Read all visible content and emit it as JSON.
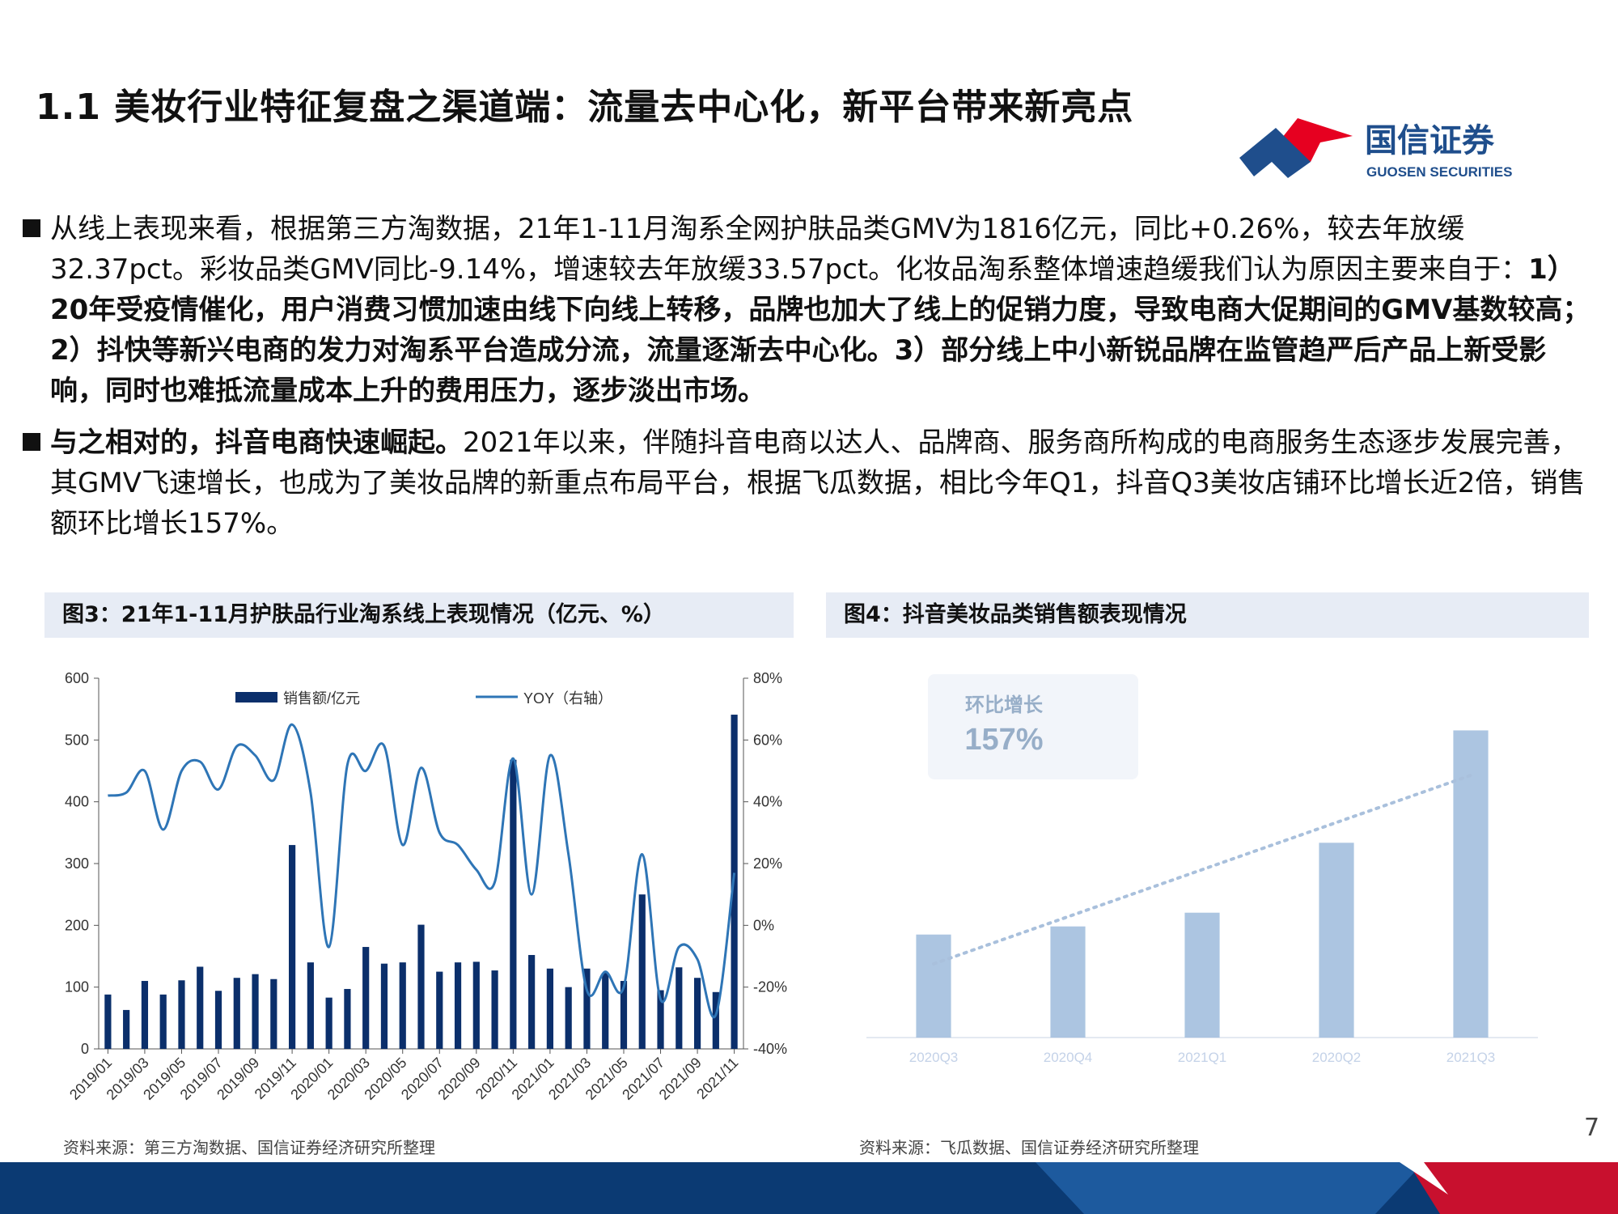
{
  "title": "1.1 美妆行业特征复盘之渠道端：流量去中心化，新平台带来新亮点",
  "logo": {
    "name_cn": "国信证券",
    "name_en": "GUOSEN SECURITIES",
    "colors": {
      "red": "#e60020",
      "blue": "#1f4e8c"
    }
  },
  "bullets": [
    {
      "p1": "从线上表现来看，根据第三方淘数据，21年1-11月淘系全网护肤品类GMV为1816亿元，同比+0.26%，较去年放缓32.37pct。彩妆品类GMV同比-9.14%，增速较去年放缓33.57pct。化妆品淘系整体增速趋缓我们认为原因主要来自于：",
      "p2": "1）20年受疫情催化，用户消费习惯加速由线下向线上转移，品牌也加大了线上的促销力度，导致电商大促期间的GMV基数较高；2）抖快等新兴电商的发力对淘系平台造成分流，流量逐渐去中心化。3）部分线上中小新锐品牌在监管趋严后产品上新受影响，同时也难抵流量成本上升的费用压力，逐步淡出市场。"
    },
    {
      "p1": "与之相对的，抖音电商快速崛起。",
      "p2": "2021年以来，伴随抖音电商以达人、品牌商、服务商所构成的电商服务生态逐步发展完善，其GMV飞速增长，也成为了美妆品牌的新重点布局平台，根据飞瓜数据，相比今年Q1，抖音Q3美妆店铺环比增长近2倍，销售额环比增长157%。"
    }
  ],
  "figure3": {
    "caption": "图3：21年1-11月护肤品行业淘系线上表现情况（亿元、%）",
    "source": "资料来源：第三方淘数据、国信证券经济研究所整理"
  },
  "figure4": {
    "caption": "图4：抖音美妆品类销售额表现情况",
    "source": "资料来源：飞瓜数据、国信证券经济研究所整理"
  },
  "page_number": "7",
  "chart_data": [
    {
      "type": "bar",
      "categories": [
        "2019/01",
        "2019/02",
        "2019/03",
        "2019/04",
        "2019/05",
        "2019/06",
        "2019/07",
        "2019/08",
        "2019/09",
        "2019/10",
        "2019/11",
        "2019/12",
        "2020/01",
        "2020/02",
        "2020/03",
        "2020/04",
        "2020/05",
        "2020/06",
        "2020/07",
        "2020/08",
        "2020/09",
        "2020/10",
        "2020/11",
        "2020/12",
        "2021/01",
        "2021/02",
        "2021/03",
        "2021/04",
        "2021/05",
        "2021/06",
        "2021/07",
        "2021/08",
        "2021/09",
        "2021/10",
        "2021/11"
      ],
      "tick_labels": [
        "2019/01",
        "2019/03",
        "2019/05",
        "2019/07",
        "2019/09",
        "2019/11",
        "2020/01",
        "2020/03",
        "2020/05",
        "2020/07",
        "2020/09",
        "2020/11",
        "2021/01",
        "2021/03",
        "2021/05",
        "2021/07",
        "2021/09",
        "2021/11"
      ],
      "series": [
        {
          "name": "销售额/亿元",
          "axis": "left",
          "type": "bar",
          "color": "#0b2f6b",
          "values": [
            88,
            63,
            110,
            88,
            111,
            133,
            94,
            115,
            121,
            113,
            330,
            140,
            83,
            97,
            165,
            138,
            140,
            201,
            125,
            140,
            141,
            127,
            468,
            152,
            130,
            100,
            130,
            123,
            110,
            250,
            95,
            132,
            115,
            92,
            541
          ]
        },
        {
          "name": "YOY（右轴）",
          "axis": "right",
          "type": "line",
          "color": "#2e75b6",
          "values": [
            42,
            43,
            50,
            31,
            50,
            53,
            44,
            58,
            55,
            47,
            65,
            43,
            -7,
            52,
            50,
            58,
            26,
            51,
            30,
            26,
            18,
            14,
            54,
            10,
            55,
            23,
            -21,
            -15,
            -20,
            23,
            -24,
            -7,
            -11,
            -29,
            17
          ]
        }
      ],
      "ylim_left": [
        0,
        600
      ],
      "yticks_left": [
        "0",
        "100",
        "200",
        "300",
        "400",
        "500",
        "600"
      ],
      "ylim_right": [
        -40,
        80
      ],
      "yticks_right": [
        "-40%",
        "-20%",
        "0%",
        "20%",
        "40%",
        "60%",
        "80%"
      ]
    },
    {
      "type": "bar",
      "categories": [
        "2020Q3",
        "2020Q4",
        "2021Q1",
        "2020Q2",
        "2021Q3"
      ],
      "values": [
        165,
        178,
        200,
        312,
        492
      ],
      "ylim": [
        0,
        560
      ],
      "color": "#9ebbdc",
      "annotation": {
        "label": "环比增长",
        "value": "157%"
      },
      "trendline": {
        "from_category": "2020Q3",
        "to_category": "2021Q3",
        "from_value": 118,
        "to_value": 420
      }
    }
  ]
}
